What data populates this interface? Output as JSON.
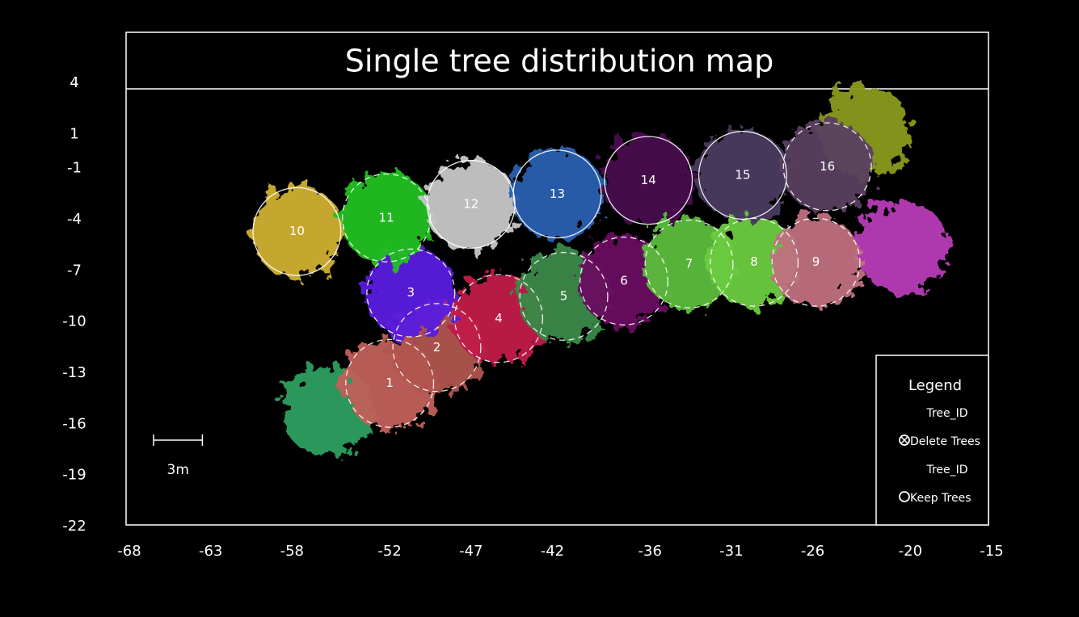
{
  "chart_data": {
    "type": "tree_map",
    "title": "Single tree distribution map",
    "xlim": [
      -68,
      -15
    ],
    "xticks": [
      -68,
      -63,
      -58,
      -52,
      -47,
      -42,
      -36,
      -31,
      -26,
      -20,
      -15
    ],
    "ylim": [
      -22,
      4
    ],
    "yticks": [
      4,
      1,
      -1,
      -4,
      -7,
      -10,
      -13,
      -16,
      -19,
      -22
    ],
    "radius": 2.7,
    "trees": [
      {
        "id": null,
        "x": -55.8,
        "y": -15.2,
        "color": "#2fa060",
        "dashed": true
      },
      {
        "id": null,
        "x": -20.5,
        "y": -5.6,
        "color": "#b83cb8",
        "dashed": true
      },
      {
        "id": null,
        "x": -22.8,
        "y": 1.2,
        "color": "#8a9a1e",
        "dashed": true
      },
      {
        "id": 1,
        "x": -52.0,
        "y": -13.6,
        "color": "#c0605a",
        "dashed": true
      },
      {
        "id": 2,
        "x": -49.1,
        "y": -11.5,
        "color": "#b2554f",
        "dashed": true
      },
      {
        "id": 3,
        "x": -50.7,
        "y": -8.3,
        "color": "#5a1ee0",
        "dashed": true
      },
      {
        "id": 4,
        "x": -45.3,
        "y": -9.8,
        "color": "#c01e4a",
        "dashed": true
      },
      {
        "id": 5,
        "x": -41.3,
        "y": -8.5,
        "color": "#3a8a4a",
        "dashed": true
      },
      {
        "id": 6,
        "x": -37.6,
        "y": -7.6,
        "color": "#6a1060",
        "dashed": true
      },
      {
        "id": 7,
        "x": -33.6,
        "y": -6.6,
        "color": "#5cbc3c",
        "dashed": true
      },
      {
        "id": 8,
        "x": -29.6,
        "y": -6.5,
        "color": "#6ccc40",
        "dashed": true
      },
      {
        "id": 9,
        "x": -25.8,
        "y": -6.5,
        "color": "#c07080",
        "dashed": true
      },
      {
        "id": 10,
        "x": -57.7,
        "y": -4.7,
        "color": "#d0b030",
        "dashed": false
      },
      {
        "id": 11,
        "x": -52.2,
        "y": -3.9,
        "color": "#20c020",
        "dashed": true
      },
      {
        "id": 12,
        "x": -47.0,
        "y": -3.1,
        "color": "#c8c8c8",
        "dashed": false
      },
      {
        "id": 13,
        "x": -41.7,
        "y": -2.5,
        "color": "#2a60b0",
        "dashed": false
      },
      {
        "id": 14,
        "x": -36.1,
        "y": -1.7,
        "color": "#4a1050",
        "dashed": false
      },
      {
        "id": 15,
        "x": -30.3,
        "y": -1.4,
        "color": "#4a3a60",
        "dashed": false
      },
      {
        "id": 16,
        "x": -25.1,
        "y": -0.9,
        "color": "#5a4060",
        "dashed": true
      }
    ],
    "scale_bar": {
      "length": 3,
      "label": "3m"
    },
    "legend": {
      "title": "Legend",
      "entries": [
        {
          "label": "Tree_ID",
          "symbol": "Delete Trees"
        },
        {
          "label": "Tree_ID",
          "symbol": "Keep Trees"
        }
      ]
    }
  }
}
